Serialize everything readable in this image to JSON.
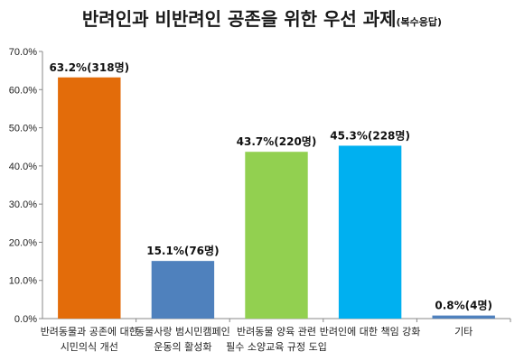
{
  "chart_data": {
    "type": "bar",
    "title": "반려인과 비반려인 공존을 위한 우선 과제",
    "subtitle": "(복수응답)",
    "xlabel": "",
    "ylabel": "",
    "ylim": [
      0,
      70
    ],
    "yticks": [
      "0.0%",
      "10.0%",
      "20.0%",
      "30.0%",
      "40.0%",
      "50.0%",
      "60.0%",
      "70.0%"
    ],
    "grid": false,
    "categories": [
      [
        "반려동물과 공존에 대한",
        "시민의식 개선"
      ],
      [
        "동물사랑 범시민캠페인",
        "운동의 활성화"
      ],
      [
        "반려동물 양육 관련",
        "필수 소양교육 규정 도입"
      ],
      [
        "반려인에 대한 책임 강화"
      ],
      [
        "기타"
      ]
    ],
    "values": [
      63.2,
      15.1,
      43.7,
      45.3,
      0.8
    ],
    "data_labels": [
      "63.2%(318명)",
      "15.1%(76명)",
      "43.7%(220명)",
      "45.3%(228명)",
      "0.8%(4명)"
    ],
    "colors": [
      "#E36C0A",
      "#4F81BD",
      "#92D050",
      "#00B0F0",
      "#4F81BD"
    ]
  }
}
